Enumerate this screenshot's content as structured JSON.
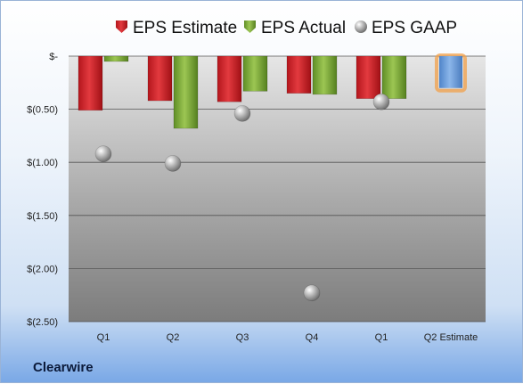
{
  "source_label": "Clearwire",
  "chart_data": {
    "type": "bar",
    "categories": [
      "Q1",
      "Q2",
      "Q3",
      "Q4",
      "Q1",
      "Q2 Estimate"
    ],
    "series": [
      {
        "name": "EPS Estimate",
        "values": [
          -0.51,
          -0.42,
          -0.43,
          -0.35,
          -0.4,
          null
        ],
        "color": "#d11f26"
      },
      {
        "name": "EPS Actual",
        "values": [
          -0.05,
          -0.68,
          -0.33,
          -0.36,
          -0.4,
          null
        ],
        "color": "#7fae3a"
      },
      {
        "name": "EPS GAAP",
        "values": [
          -0.92,
          -1.01,
          -0.54,
          -2.23,
          -0.43,
          null
        ],
        "color": "#a8a8a8"
      }
    ],
    "estimate_bar": {
      "category_index": 5,
      "value": -0.3,
      "color": "#6f9fd8",
      "glow": "#f2a04a"
    },
    "y_ticks": [
      {
        "value": 0,
        "label": "$-"
      },
      {
        "value": -0.5,
        "label": "$(0.50)"
      },
      {
        "value": -1.0,
        "label": "$(1.00)"
      },
      {
        "value": -1.5,
        "label": "$(1.50)"
      },
      {
        "value": -2.0,
        "label": "$(2.00)"
      },
      {
        "value": -2.5,
        "label": "$(2.50)"
      }
    ],
    "ylim": [
      -2.5,
      0
    ],
    "grid": true,
    "legend_position": "top"
  }
}
